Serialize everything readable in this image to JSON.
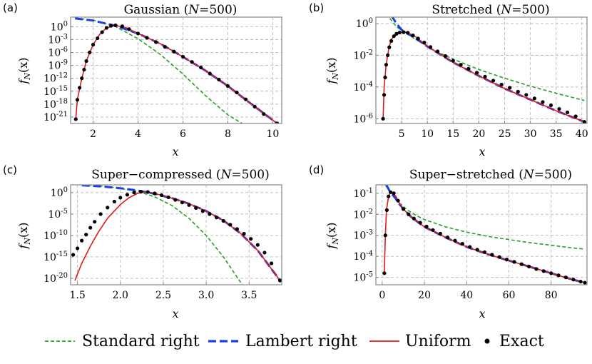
{
  "colors": {
    "standard": "#22a022",
    "lambert": "#1a3fe6",
    "uniform": "#e01a1a",
    "exact": "#000000",
    "grid": "#b8b8b8",
    "frame": "#888888"
  },
  "legend": {
    "standard": "Standard right",
    "lambert": "Lambert right",
    "uniform": "Uniform",
    "exact": "Exact"
  },
  "chart_data": [
    {
      "panel_label": "(a)",
      "type": "line",
      "title": "Gaussian (N=500)",
      "title_prefix": "Gaussian (",
      "title_suffix": "=500)",
      "title_n": "N",
      "xlabel": "x",
      "ylabel": "f_N(x)",
      "yscale": "log",
      "xlim": [
        1.0,
        10.4
      ],
      "ylim_log10": [
        -22.5,
        2.2
      ],
      "xticks": [
        2,
        4,
        6,
        8,
        10
      ],
      "xtick_labels": [
        "2",
        "4",
        "6",
        "8",
        "10"
      ],
      "yticks_log10": [
        0,
        -3,
        -6,
        -9,
        -12,
        -15,
        -18,
        -21
      ],
      "ytick_base": "10",
      "ytick_exps": [
        "0",
        "-3",
        "-6",
        "-9",
        "-12",
        "-15",
        "-18",
        "-21"
      ],
      "series": [
        {
          "name": "Standard right",
          "x": [
            1.2,
            2,
            3,
            4,
            5,
            6,
            7,
            8,
            8.8
          ],
          "log10_y": [
            2.0,
            1.5,
            0,
            -2.8,
            -6.5,
            -11,
            -16,
            -20.5,
            -23
          ]
        },
        {
          "name": "Lambert right",
          "x": [
            1.2,
            2,
            3,
            4,
            5,
            6,
            7,
            8,
            9,
            10.2
          ],
          "log10_y": [
            1.9,
            1.4,
            0.2,
            -1.6,
            -4.0,
            -7.0,
            -10.2,
            -13.8,
            -17.8,
            -22.5
          ]
        },
        {
          "name": "Uniform",
          "x": [
            1.23,
            1.3,
            1.5,
            1.7,
            2.0,
            2.3,
            2.6,
            3.0,
            3.5,
            4,
            5,
            6,
            7,
            8,
            9,
            10.2
          ],
          "log10_y": [
            -21.5,
            -17,
            -12,
            -8,
            -4.2,
            -1.8,
            -0.3,
            0.3,
            -0.3,
            -1.6,
            -4.0,
            -7.0,
            -10.2,
            -13.8,
            -17.8,
            -22.5
          ]
        },
        {
          "name": "Exact",
          "x": [
            1.23,
            1.3,
            1.4,
            1.5,
            1.6,
            1.7,
            1.85,
            2.0,
            2.2,
            2.4,
            2.6,
            2.8,
            3.0,
            3.3,
            3.6,
            4.0,
            4.4,
            4.8,
            5.2,
            5.6,
            6.0,
            6.4,
            6.8,
            7.2,
            7.6,
            8.0,
            8.4,
            8.8,
            9.2,
            9.6,
            10.2
          ],
          "log10_y": [
            -21.5,
            -17,
            -14.2,
            -12,
            -10,
            -8,
            -6,
            -4.2,
            -2.7,
            -1.3,
            -0.3,
            0.2,
            0.3,
            0.1,
            -0.6,
            -1.6,
            -2.6,
            -3.6,
            -4.7,
            -5.8,
            -7.0,
            -8.2,
            -9.5,
            -10.9,
            -12.3,
            -13.8,
            -15.3,
            -16.9,
            -18.6,
            -20.3,
            -22.5
          ]
        }
      ]
    },
    {
      "panel_label": "(b)",
      "type": "line",
      "title": "Stretched (N=500)",
      "title_prefix": "Stretched (",
      "title_suffix": "=500)",
      "title_n": "N",
      "xlabel": "x",
      "ylabel": "f_N(x)",
      "yscale": "log",
      "xlim": [
        0,
        41
      ],
      "ylim_log10": [
        -6.3,
        0.4
      ],
      "xticks": [
        5,
        10,
        15,
        20,
        25,
        30,
        35,
        40
      ],
      "xtick_labels": [
        "5",
        "10",
        "15",
        "20",
        "25",
        "30",
        "35",
        "40"
      ],
      "yticks_log10": [
        0,
        -2,
        -4,
        -6
      ],
      "ytick_base": "10",
      "ytick_exps": [
        "0",
        "-2",
        "-4",
        "-6"
      ],
      "series": [
        {
          "name": "Standard right",
          "x": [
            2,
            3,
            4,
            5,
            6,
            8,
            10,
            12,
            15,
            20,
            25,
            30,
            35,
            40.5
          ],
          "log10_y": [
            0.6,
            0.2,
            -0.2,
            -0.45,
            -0.65,
            -1.05,
            -1.45,
            -1.8,
            -2.25,
            -2.9,
            -3.45,
            -3.95,
            -4.4,
            -4.85
          ]
        },
        {
          "name": "Lambert right",
          "x": [
            3,
            4,
            5,
            6,
            8,
            10,
            12,
            15,
            20,
            25,
            30,
            35,
            40.5
          ],
          "log10_y": [
            0.5,
            0.0,
            -0.4,
            -0.6,
            -1.0,
            -1.45,
            -1.85,
            -2.45,
            -3.3,
            -4.1,
            -4.8,
            -5.5,
            -6.2
          ]
        },
        {
          "name": "Uniform",
          "x": [
            1.4,
            1.6,
            2,
            2.5,
            3,
            4,
            5,
            5.8,
            7,
            8,
            10,
            12,
            15,
            20,
            25,
            30,
            35,
            40.5
          ],
          "log10_y": [
            -6.0,
            -4.0,
            -2.6,
            -1.6,
            -1.0,
            -0.6,
            -0.55,
            -0.55,
            -0.7,
            -0.9,
            -1.45,
            -1.85,
            -2.45,
            -3.3,
            -4.1,
            -4.8,
            -5.5,
            -6.2
          ]
        },
        {
          "name": "Exact",
          "x": [
            1.4,
            1.6,
            1.8,
            2.0,
            2.3,
            2.6,
            3.0,
            3.5,
            4.0,
            4.6,
            5.4,
            6.2,
            7.2,
            8.2,
            9.4,
            10.6,
            12,
            13.5,
            15,
            16.5,
            18,
            19.6,
            21.2,
            22.8,
            24.4,
            26,
            27.6,
            29.2,
            30.8,
            32.4,
            34,
            35.6,
            37.2,
            38.8,
            40.5
          ],
          "log10_y": [
            -6.0,
            -4.5,
            -3.4,
            -2.6,
            -2.0,
            -1.5,
            -1.1,
            -0.8,
            -0.65,
            -0.57,
            -0.55,
            -0.58,
            -0.75,
            -0.95,
            -1.2,
            -1.48,
            -1.76,
            -2.05,
            -2.35,
            -2.6,
            -2.85,
            -3.1,
            -3.35,
            -3.6,
            -3.85,
            -4.05,
            -4.3,
            -4.5,
            -4.72,
            -4.95,
            -5.15,
            -5.38,
            -5.6,
            -5.85,
            -6.2
          ]
        }
      ]
    },
    {
      "panel_label": "(c)",
      "type": "line",
      "title": "Super-compressed (N=500)",
      "title_prefix": "Super−compressed (",
      "title_suffix": "=500)",
      "title_n": "N",
      "xlabel": "x",
      "ylabel": "f_N(x)",
      "yscale": "log",
      "xlim": [
        1.42,
        3.88
      ],
      "ylim_log10": [
        -21.5,
        1.8
      ],
      "xticks": [
        1.5,
        2.0,
        2.5,
        3.0,
        3.5
      ],
      "xtick_labels": [
        "1.5",
        "2.0",
        "2.5",
        "3.0",
        "3.5"
      ],
      "yticks_log10": [
        0,
        -5,
        -10,
        -15,
        -20
      ],
      "ytick_base": "10",
      "ytick_exps": [
        "0",
        "-5",
        "-10",
        "-15",
        "-20"
      ],
      "series": [
        {
          "name": "Standard right",
          "x": [
            1.55,
            1.8,
            2.0,
            2.2,
            2.4,
            2.6,
            2.8,
            3.0,
            3.2,
            3.42
          ],
          "log10_y": [
            1.8,
            1.5,
            1.0,
            0.3,
            -1.0,
            -3.0,
            -6.0,
            -10.0,
            -15.0,
            -21.5
          ]
        },
        {
          "name": "Lambert right",
          "x": [
            1.55,
            1.8,
            2.0,
            2.2,
            2.4,
            2.6,
            2.8,
            3.0,
            3.2,
            3.4,
            3.6,
            3.86
          ],
          "log10_y": [
            1.7,
            1.4,
            1.0,
            0.5,
            -0.3,
            -1.3,
            -2.6,
            -4.3,
            -6.5,
            -9.5,
            -13.5,
            -20.5
          ]
        },
        {
          "name": "Uniform",
          "x": [
            1.47,
            1.55,
            1.65,
            1.75,
            1.85,
            2.0,
            2.1,
            2.2,
            2.3,
            2.4,
            2.6,
            2.8,
            3.0,
            3.2,
            3.4,
            3.6,
            3.86
          ],
          "log10_y": [
            -20.5,
            -16.5,
            -12.5,
            -9.0,
            -6.0,
            -2.8,
            -1.2,
            -0.2,
            0.2,
            -0.2,
            -1.3,
            -2.6,
            -4.3,
            -6.5,
            -9.5,
            -13.5,
            -20.5
          ]
        },
        {
          "name": "Exact",
          "x": [
            1.45,
            1.5,
            1.55,
            1.6,
            1.65,
            1.7,
            1.77,
            1.85,
            1.93,
            2.0,
            2.08,
            2.16,
            2.24,
            2.32,
            2.4,
            2.48,
            2.56,
            2.64,
            2.72,
            2.8,
            2.88,
            2.96,
            3.04,
            3.12,
            3.2,
            3.28,
            3.36,
            3.44,
            3.52,
            3.6,
            3.68,
            3.76,
            3.86
          ],
          "log10_y": [
            -14.5,
            -13.0,
            -11.2,
            -9.8,
            -8.2,
            -6.8,
            -5.0,
            -3.5,
            -2.1,
            -1.2,
            -0.5,
            0.0,
            0.2,
            0.15,
            -0.2,
            -0.6,
            -1.1,
            -1.7,
            -2.3,
            -2.9,
            -3.6,
            -4.3,
            -5.0,
            -5.8,
            -6.6,
            -7.5,
            -8.5,
            -9.6,
            -10.8,
            -12.2,
            -14.0,
            -16.5,
            -20.5
          ]
        }
      ]
    },
    {
      "panel_label": "(d)",
      "type": "line",
      "title": "Super-stretched (N=500)",
      "title_prefix": "Super−stretched (",
      "title_suffix": "=500)",
      "title_n": "N",
      "xlabel": "x",
      "ylabel": "f_N(x)",
      "yscale": "log",
      "xlim": [
        -3,
        97
      ],
      "ylim_log10": [
        -5.35,
        -0.6
      ],
      "xticks": [
        0,
        20,
        40,
        60,
        80
      ],
      "xtick_labels": [
        "0",
        "20",
        "40",
        "60",
        "80"
      ],
      "yticks_log10": [
        -1,
        -2,
        -3,
        -4,
        -5
      ],
      "ytick_base": "10",
      "ytick_exps": [
        "-1",
        "-2",
        "-3",
        "-4",
        "-5"
      ],
      "series": [
        {
          "name": "Standard right",
          "x": [
            1.5,
            3,
            5,
            8,
            12,
            16,
            20,
            30,
            40,
            50,
            60,
            70,
            80,
            90,
            96
          ],
          "log10_y": [
            -0.6,
            -0.85,
            -1.05,
            -1.45,
            -1.8,
            -2.05,
            -2.25,
            -2.6,
            -2.85,
            -3.05,
            -3.2,
            -3.35,
            -3.47,
            -3.6,
            -3.65
          ]
        },
        {
          "name": "Lambert right",
          "x": [
            2,
            3,
            4,
            6,
            8,
            10,
            14,
            20,
            30,
            40,
            50,
            60,
            70,
            80,
            90,
            96
          ],
          "log10_y": [
            -0.6,
            -0.8,
            -0.98,
            -1.2,
            -1.5,
            -1.75,
            -2.15,
            -2.6,
            -3.1,
            -3.55,
            -3.9,
            -4.2,
            -4.5,
            -4.8,
            -5.1,
            -5.25
          ]
        },
        {
          "name": "Uniform",
          "x": [
            1.0,
            1.5,
            2.0,
            3.0,
            4.0,
            5.0,
            6.5,
            8.0,
            10,
            14,
            20,
            30,
            40,
            50,
            60,
            70,
            80,
            90,
            96
          ],
          "log10_y": [
            -4.8,
            -3.0,
            -1.8,
            -1.15,
            -0.95,
            -0.98,
            -1.15,
            -1.45,
            -1.75,
            -2.15,
            -2.6,
            -3.1,
            -3.55,
            -3.9,
            -4.2,
            -4.5,
            -4.8,
            -5.1,
            -5.25
          ]
        },
        {
          "name": "Exact",
          "x": [
            1.0,
            1.5,
            2.2,
            3.0,
            4.0,
            5.5,
            7.5,
            10,
            12.5,
            15,
            18,
            21,
            24,
            27.5,
            31,
            34.5,
            38,
            41.5,
            45,
            48.5,
            52,
            55.5,
            59,
            62.5,
            66,
            69.5,
            73,
            76.5,
            80,
            83.5,
            87,
            90.5,
            94,
            96
          ],
          "log10_y": [
            -4.8,
            -3.0,
            -1.8,
            -1.15,
            -0.95,
            -1.0,
            -1.35,
            -1.75,
            -2.0,
            -2.2,
            -2.4,
            -2.58,
            -2.75,
            -2.92,
            -3.1,
            -3.25,
            -3.4,
            -3.55,
            -3.68,
            -3.8,
            -3.92,
            -4.03,
            -4.15,
            -4.26,
            -4.37,
            -4.48,
            -4.6,
            -4.7,
            -4.8,
            -4.9,
            -5.0,
            -5.1,
            -5.2,
            -5.25
          ]
        }
      ]
    }
  ]
}
